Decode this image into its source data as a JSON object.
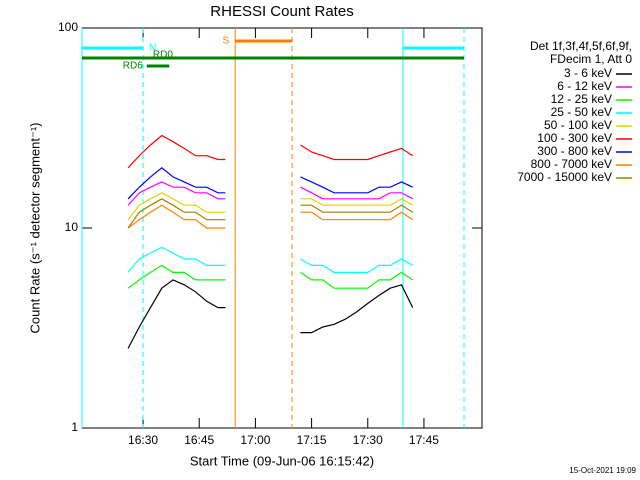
{
  "chart_data": {
    "type": "line",
    "title": "RHESSI Count Rates",
    "x_label": "Start Time (09-Jun-06 16:15:42)",
    "y_label": "Count Rate (s⁻¹ detector segment⁻¹)",
    "x": [
      986,
      989,
      992,
      995,
      998,
      1001,
      1004,
      1007,
      1010,
      1012,
      1022,
      1032,
      1035,
      1038,
      1041,
      1044,
      1047,
      1050,
      1053,
      1056,
      1059,
      1062
    ],
    "series": [
      {
        "name": "3 - 6 keV",
        "color": "#000000",
        "values": [
          2.5,
          3.2,
          4,
          5,
          5.5,
          5.2,
          4.8,
          4.3,
          4,
          4,
          null,
          3,
          3,
          3.2,
          3.3,
          3.5,
          3.8,
          4.2,
          4.6,
          5,
          5.2,
          4
        ]
      },
      {
        "name": "6 - 12 keV",
        "color": "#ff00ff",
        "values": [
          13,
          15,
          16,
          17,
          16,
          16,
          15,
          15,
          14,
          14,
          null,
          16,
          15,
          14,
          14,
          14,
          14,
          14,
          14,
          15,
          15,
          14
        ]
      },
      {
        "name": "12 - 25 keV",
        "color": "#00ff00",
        "values": [
          5,
          5.5,
          6,
          6.5,
          6,
          6,
          5.5,
          5.5,
          5.5,
          5.5,
          null,
          6,
          5.5,
          5.5,
          5,
          5,
          5,
          5,
          5.5,
          5.5,
          6,
          5.5
        ]
      },
      {
        "name": "25 - 50 keV",
        "color": "#00ffff",
        "values": [
          6,
          7,
          7.5,
          8,
          7.5,
          7,
          7,
          6.5,
          6.5,
          6.5,
          null,
          7,
          6.5,
          6.5,
          6,
          6,
          6,
          6,
          6.5,
          6.5,
          7,
          6.5
        ]
      },
      {
        "name": "50 - 100 keV",
        "color": "#e6d200",
        "values": [
          11,
          13,
          14,
          15,
          14,
          13,
          13,
          12,
          12,
          12,
          null,
          14,
          14,
          13,
          13,
          13,
          13,
          13,
          13,
          13,
          14,
          13
        ]
      },
      {
        "name": "100 - 300 keV",
        "color": "#ff0000",
        "values": [
          20,
          23,
          26,
          29,
          27,
          25,
          23,
          23,
          22,
          22,
          null,
          26,
          24,
          23,
          22,
          22,
          22,
          22,
          23,
          24,
          25,
          23
        ]
      },
      {
        "name": "300 - 800 keV",
        "color": "#0000ff",
        "values": [
          14,
          16,
          18,
          20,
          18,
          17,
          16,
          16,
          15,
          15,
          null,
          18,
          17,
          16,
          15,
          15,
          15,
          15,
          16,
          16,
          17,
          16
        ]
      },
      {
        "name": "800 - 7000 keV",
        "color": "#ff8000",
        "values": [
          10,
          11,
          12,
          13,
          12,
          11,
          11,
          10,
          10,
          10,
          null,
          12,
          12,
          11,
          11,
          11,
          11,
          11,
          11,
          11,
          12,
          11
        ]
      },
      {
        "name": "7000 - 15000 keV",
        "color": "#a08000",
        "values": [
          10,
          12,
          13,
          14,
          13,
          12,
          12,
          11,
          11,
          11,
          null,
          13,
          13,
          12,
          12,
          12,
          12,
          12,
          12,
          12,
          13,
          12
        ]
      }
    ],
    "xlim": [
      973.7,
      1080.5
    ],
    "xticks": [
      {
        "value": 990,
        "label": "16:30"
      },
      {
        "value": 1005,
        "label": "16:45"
      },
      {
        "value": 1020,
        "label": "17:00"
      },
      {
        "value": 1035,
        "label": "17:15"
      },
      {
        "value": 1050,
        "label": "17:30"
      },
      {
        "value": 1065,
        "label": "17:45"
      }
    ],
    "ylim": [
      1,
      100
    ],
    "yticks": [
      1,
      10,
      100
    ],
    "log_y": true,
    "legend_header": [
      "Det 1f,3f,4f,5f,6f,9f,",
      "FDecim 1, Att 0"
    ],
    "flags": [
      {
        "label": "N",
        "color": "#00ffff",
        "ranges": [
          [
            973.7,
            990
          ],
          [
            1059.4,
            1075.7
          ]
        ]
      },
      {
        "label": "RD0",
        "color": "#008000",
        "ranges": [
          [
            990.5,
            997
          ]
        ]
      },
      {
        "label": "RD6",
        "color": "#008000",
        "ranges": [
          [
            991,
            997
          ]
        ]
      },
      {
        "label": "S",
        "color": "#ff8000",
        "ranges": [
          [
            1014.6,
            1029.8
          ]
        ]
      }
    ],
    "footer": "15-Oct-2021 19:09"
  }
}
